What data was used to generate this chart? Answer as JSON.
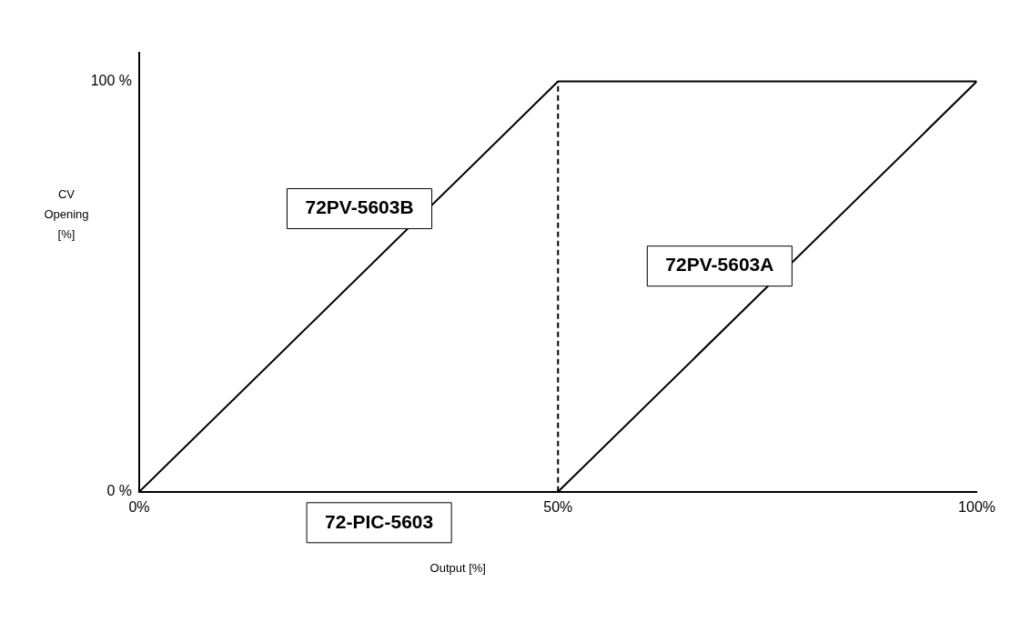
{
  "chart_data": {
    "type": "line",
    "xlabel": "Output [%]",
    "ylabel": "CV Opening [%]",
    "xlim": [
      0,
      100
    ],
    "ylim": [
      0,
      107
    ],
    "xticks": [
      {
        "value": 0,
        "label": "0%"
      },
      {
        "value": 50,
        "label": "50%"
      },
      {
        "value": 100,
        "label": "100%"
      }
    ],
    "yticks": [
      {
        "value": 0,
        "label": "0 %"
      },
      {
        "value": 100,
        "label": "100 %"
      }
    ],
    "series": [
      {
        "name": "72PV-5603B",
        "color": "#000000",
        "x": [
          0,
          50,
          100
        ],
        "values": [
          0,
          100,
          100
        ]
      },
      {
        "name": "72PV-5603A",
        "color": "#000000",
        "x": [
          50,
          100
        ],
        "values": [
          0,
          100
        ]
      }
    ],
    "ref_lines": [
      {
        "axis": "x",
        "value": 50,
        "color": "#000000",
        "line_style": "dashed"
      }
    ],
    "annotations": [
      "72-PIC-5603"
    ],
    "grid": false,
    "legend": false,
    "marker": "none",
    "line_style": "solid"
  }
}
